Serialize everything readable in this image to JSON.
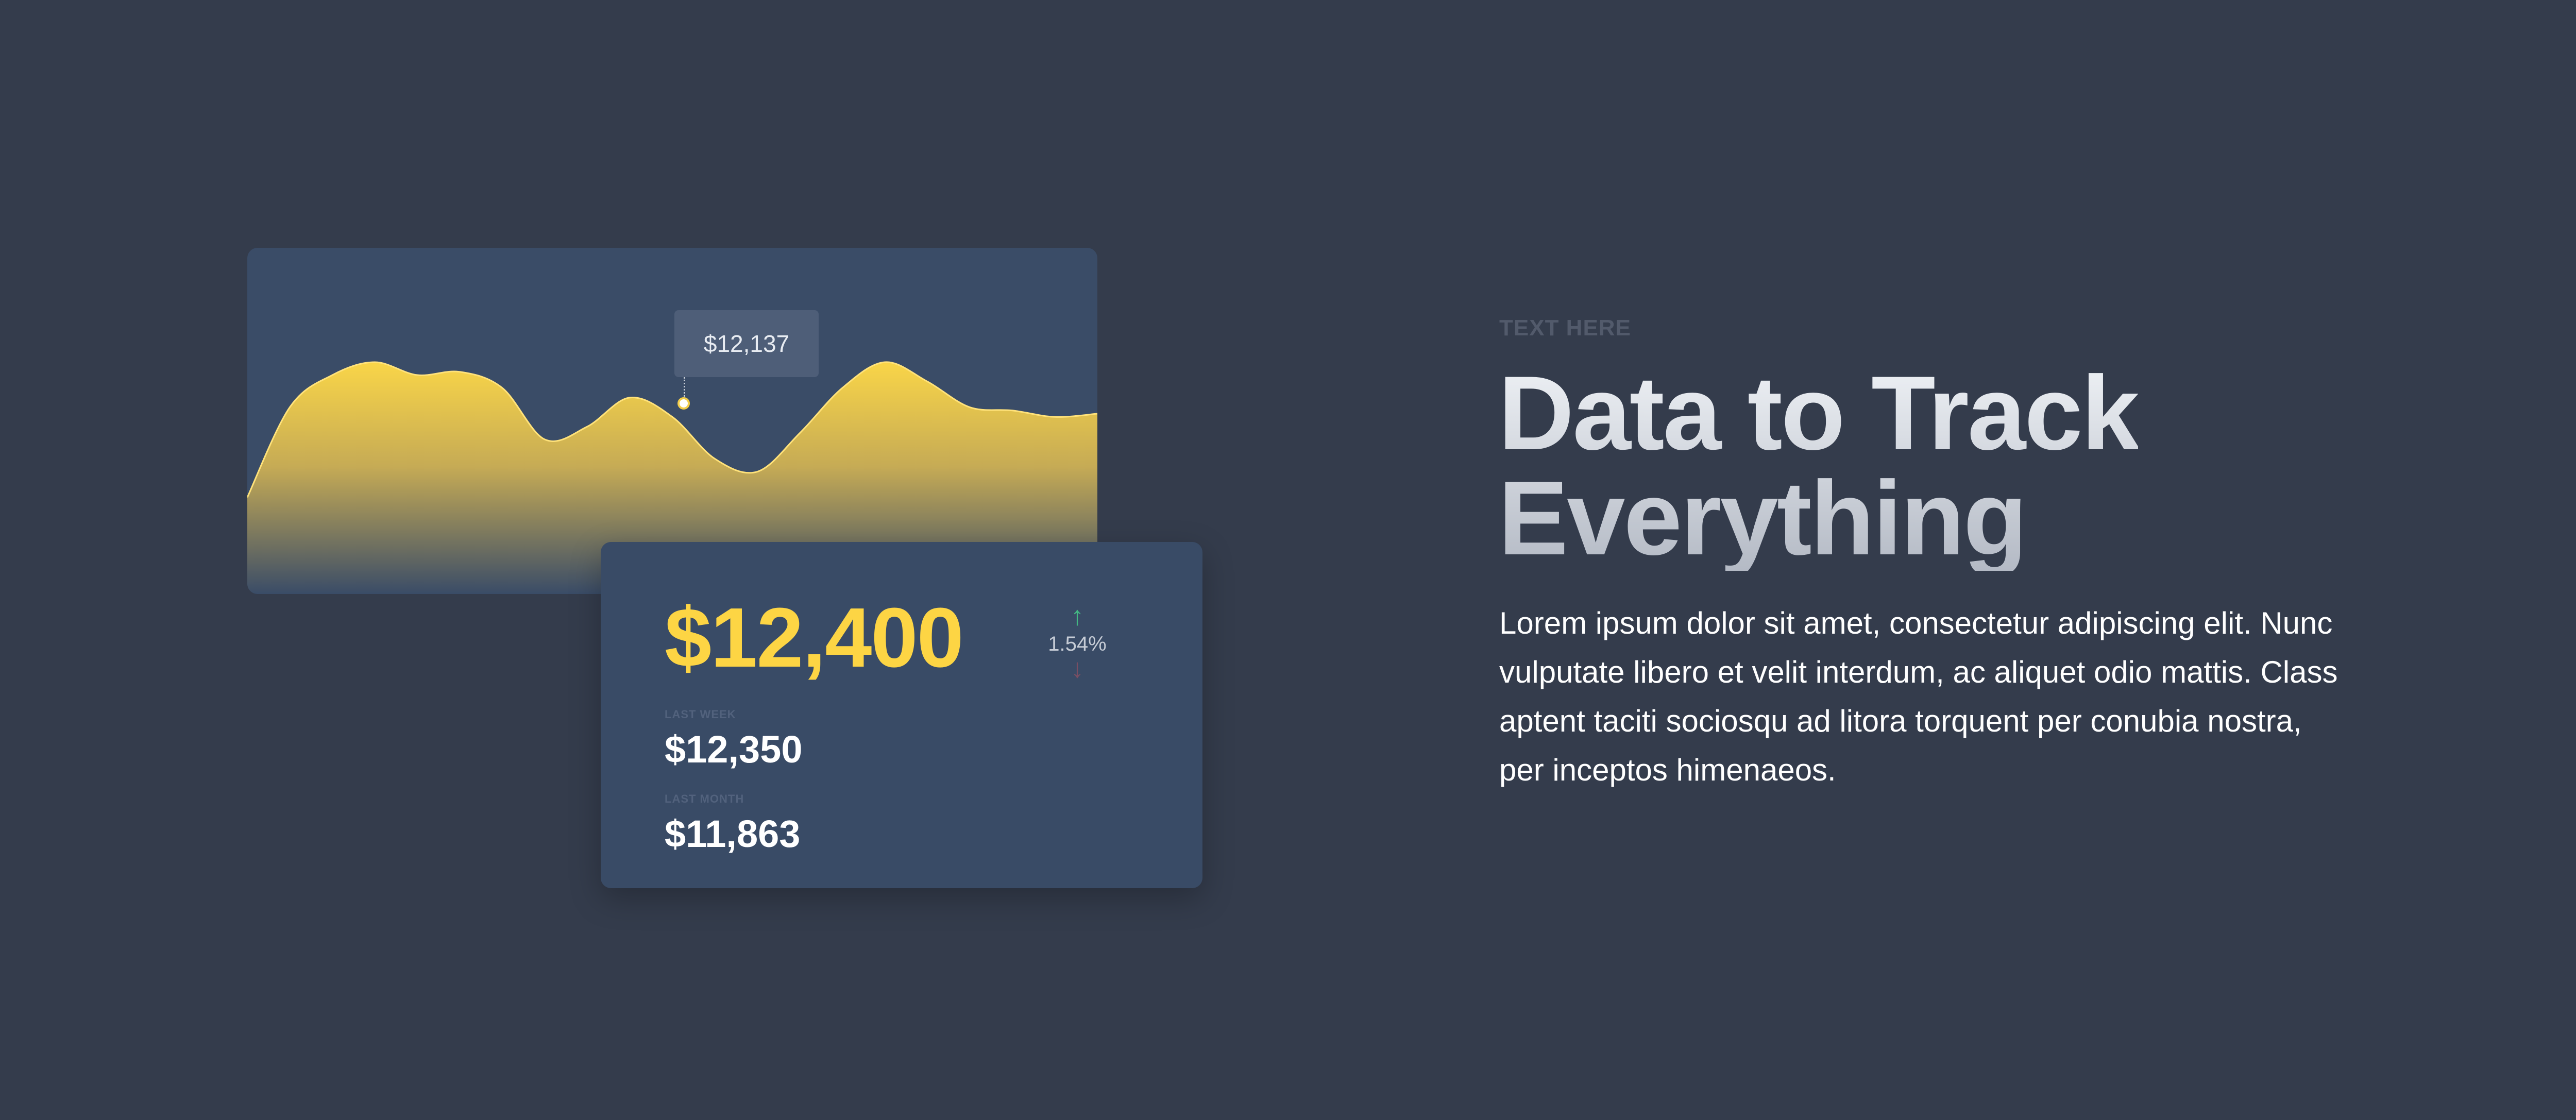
{
  "chart": {
    "tooltip_value": "$12,137",
    "series_color": "#f9d548"
  },
  "chart_data": {
    "type": "area",
    "x": [
      0,
      5,
      10,
      15,
      20,
      25,
      30,
      35,
      40,
      45,
      50,
      55,
      60,
      65,
      70,
      75,
      80,
      85,
      90,
      95,
      100
    ],
    "values": [
      30,
      58,
      68,
      72,
      68,
      69,
      64,
      48,
      52,
      61,
      55,
      42,
      38,
      50,
      64,
      72,
      66,
      58,
      57,
      55,
      56
    ],
    "highlight": {
      "x": 51,
      "label": "$12,137"
    },
    "title": "",
    "xlabel": "",
    "ylabel": "",
    "grid": false
  },
  "stats": {
    "current_value": "$12,400",
    "change_percent": "1.54%",
    "up_icon": "arrow-up-icon",
    "down_icon": "arrow-down-icon",
    "last_week_label": "LAST WEEK",
    "last_week_value": "$12,350",
    "last_month_label": "LAST MONTH",
    "last_month_value": "$11,863",
    "accent_color": "#fdd544"
  },
  "hero": {
    "eyebrow": "TEXT HERE",
    "headline_line1": "Data to Track",
    "headline_line2": "Everything",
    "body": "Lorem ipsum dolor sit amet, consectetur adipiscing elit. Nunc vulputate libero et velit interdum, ac aliquet odio mattis. Class aptent taciti sociosqu ad litora torquent per conubia nostra, per inceptos himenaeos."
  },
  "colors": {
    "background": "#343c4c",
    "card": "#3a4c67",
    "accent": "#fdd544"
  }
}
